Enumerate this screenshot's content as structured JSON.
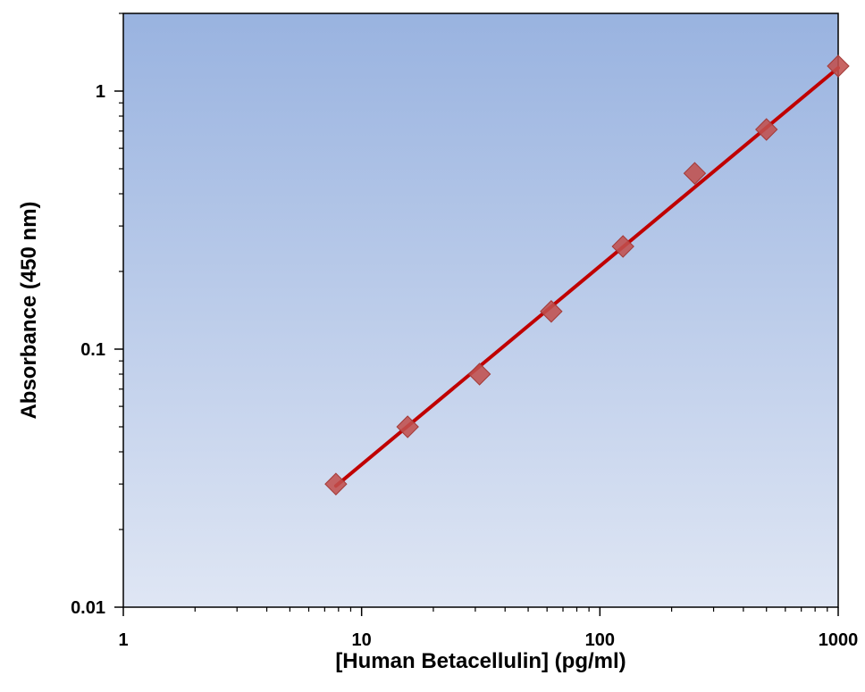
{
  "chart_data": {
    "type": "scatter",
    "title": "",
    "xlabel": "[Human Betacellulin] (pg/ml)",
    "ylabel": "Absorbance (450 nm)",
    "x_scale": "log",
    "y_scale": "log",
    "xlim": [
      1,
      1000
    ],
    "ylim": [
      0.01,
      2
    ],
    "x_ticks": [
      {
        "value": 1,
        "label": "1"
      },
      {
        "value": 10,
        "label": "10"
      },
      {
        "value": 100,
        "label": "100"
      },
      {
        "value": 1000,
        "label": "1000"
      }
    ],
    "y_ticks": [
      {
        "value": 0.01,
        "label": "0.01"
      },
      {
        "value": 0.1,
        "label": "0.1"
      },
      {
        "value": 1,
        "label": "1"
      }
    ],
    "grid": false,
    "legend": "none",
    "series": [
      {
        "marker": "diamond",
        "color": "#c0504d",
        "points": [
          {
            "x": 7.8,
            "y": 0.03
          },
          {
            "x": 15.6,
            "y": 0.05
          },
          {
            "x": 31.25,
            "y": 0.08
          },
          {
            "x": 62.5,
            "y": 0.14
          },
          {
            "x": 125,
            "y": 0.25
          },
          {
            "x": 250,
            "y": 0.48
          },
          {
            "x": 500,
            "y": 0.71
          },
          {
            "x": 1000,
            "y": 1.25
          }
        ]
      }
    ],
    "fit_line": {
      "color": "#c00000",
      "start": {
        "x": 7.8,
        "y": 0.0295
      },
      "end": {
        "x": 1000,
        "y": 1.23
      }
    },
    "background_gradient": {
      "top": "#99b3e0",
      "bottom": "#dfe6f4"
    }
  }
}
